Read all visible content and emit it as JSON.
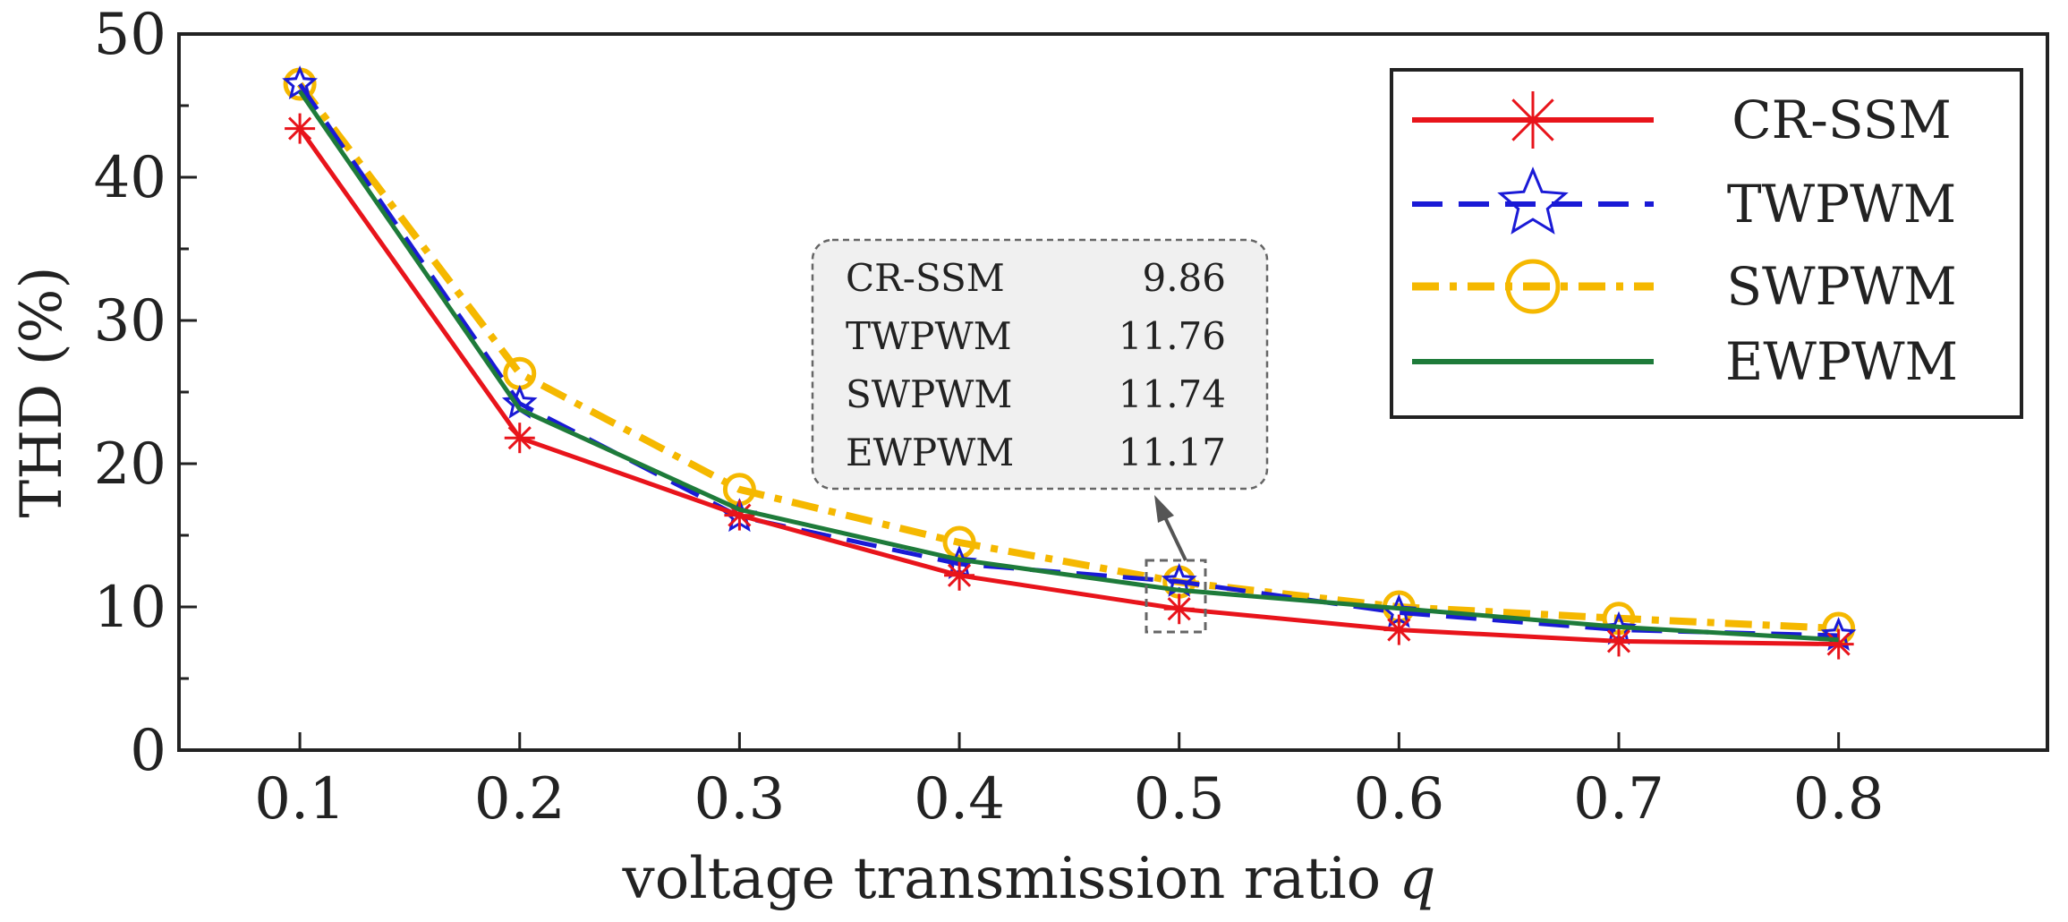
{
  "chart_data": {
    "type": "line",
    "xlabel_text": "voltage transmission ratio ",
    "xlabel_var": "q",
    "ylabel": "THD (%)",
    "x": [
      0.1,
      0.2,
      0.3,
      0.4,
      0.5,
      0.6,
      0.7,
      0.8
    ],
    "x_tick_labels": [
      "0.1",
      "0.2",
      "0.3",
      "0.4",
      "0.5",
      "0.6",
      "0.7",
      "0.8"
    ],
    "xlim": [
      0.045,
      0.895
    ],
    "ylim": [
      0,
      50
    ],
    "y_ticks": [
      0,
      10,
      20,
      30,
      40,
      50
    ],
    "y_tick_labels": [
      "0",
      "10",
      "20",
      "30",
      "40",
      "50"
    ],
    "grid": false,
    "legend_position": "top-right",
    "series": [
      {
        "name": "CR-SSM",
        "color": "#e8141b",
        "marker": "asterisk",
        "line_style": "solid",
        "values": [
          43.4,
          21.8,
          16.4,
          12.2,
          9.86,
          8.4,
          7.6,
          7.4
        ]
      },
      {
        "name": "TWPWM",
        "color": "#1a1ad6",
        "marker": "star",
        "line_style": "dashed",
        "values": [
          46.5,
          24.2,
          16.3,
          13.0,
          11.76,
          9.6,
          8.4,
          8.0
        ]
      },
      {
        "name": "SWPWM",
        "color": "#f5b800",
        "marker": "circle",
        "line_style": "dashdot",
        "values": [
          46.5,
          26.3,
          18.2,
          14.5,
          11.74,
          10.0,
          9.2,
          8.5
        ]
      },
      {
        "name": "EWPWM",
        "color": "#1e7b3a",
        "marker": "none",
        "line_style": "solid",
        "values": [
          46.0,
          23.8,
          16.8,
          13.3,
          11.17,
          9.9,
          8.6,
          7.7
        ]
      }
    ],
    "annotation": {
      "x": 0.5,
      "rows": [
        {
          "name": "CR-SSM",
          "value": "9.86"
        },
        {
          "name": "TWPWM",
          "value": "11.76"
        },
        {
          "name": "SWPWM",
          "value": "11.74"
        },
        {
          "name": "EWPWM",
          "value": "11.17"
        }
      ]
    }
  }
}
